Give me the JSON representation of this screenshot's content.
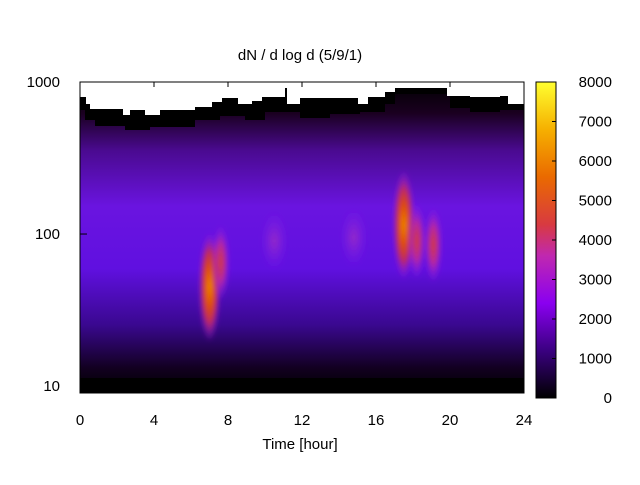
{
  "chart_data": {
    "type": "heatmap",
    "title": "dN / d log d (5/9/1)",
    "xlabel": "Time [hour]",
    "ylabel": "",
    "xlim": [
      0,
      24
    ],
    "ylim": [
      9,
      1000
    ],
    "yscale": "log",
    "x_ticks": [
      0,
      4,
      8,
      12,
      16,
      20,
      24
    ],
    "y_ticks": [
      10,
      100,
      1000
    ],
    "colorbar": {
      "min": 0,
      "max": 8000,
      "ticks": [
        0,
        1000,
        2000,
        3000,
        4000,
        5000,
        6000,
        7000,
        8000
      ],
      "palette": "black-purple-red-yellow"
    },
    "hotspots": [
      {
        "time": 7.0,
        "diameter": 45,
        "value": 5600
      },
      {
        "time": 7.6,
        "diameter": 65,
        "value": 3800
      },
      {
        "time": 17.5,
        "diameter": 115,
        "value": 6200
      },
      {
        "time": 18.2,
        "diameter": 90,
        "value": 4500
      },
      {
        "time": 19.1,
        "diameter": 85,
        "value": 4300
      },
      {
        "time": 10.5,
        "diameter": 90,
        "value": 2900
      },
      {
        "time": 14.8,
        "diameter": 95,
        "value": 2700
      }
    ],
    "grid": false,
    "legend": "colorbar-right"
  }
}
